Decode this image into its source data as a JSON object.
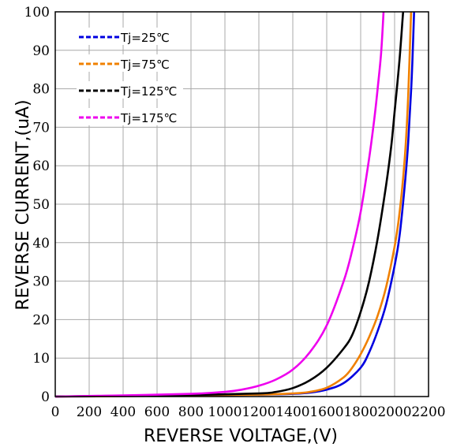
{
  "chart_data": {
    "type": "line",
    "xlabel": "REVERSE VOLTAGE,(V)",
    "ylabel": "REVERSE CURRENT,(uA)",
    "xlim": [
      0,
      2200
    ],
    "ylim": [
      0,
      100
    ],
    "xticks": [
      "0",
      "200",
      "400",
      "600",
      "800",
      "1000",
      "1200",
      "1400",
      "1600",
      "1800",
      "2000",
      "2200"
    ],
    "yticks": [
      "0",
      "10",
      "20",
      "30",
      "40",
      "50",
      "60",
      "70",
      "80",
      "90",
      "100"
    ],
    "grid": true,
    "legend_position": "top-left",
    "series": [
      {
        "name": "Tj=25℃",
        "color": "#0000e0",
        "x": [
          0,
          400,
          800,
          1200,
          1400,
          1500,
          1600,
          1700,
          1800,
          1850,
          1900,
          1950,
          2000,
          2030,
          2060,
          2080,
          2100,
          2115
        ],
        "y": [
          0,
          0.1,
          0.3,
          0.5,
          0.7,
          1.0,
          1.8,
          3.5,
          7.5,
          11.5,
          17,
          24,
          34,
          42,
          55,
          66,
          82,
          100
        ]
      },
      {
        "name": "Tj=75℃",
        "color": "#f08000",
        "x": [
          0,
          400,
          800,
          1200,
          1400,
          1500,
          1600,
          1700,
          1750,
          1800,
          1850,
          1900,
          1950,
          2000,
          2030,
          2060,
          2080,
          2097
        ],
        "y": [
          0,
          0.1,
          0.3,
          0.5,
          0.8,
          1.2,
          2.3,
          5,
          7.5,
          11,
          15.5,
          21,
          28.5,
          39,
          48,
          62,
          78,
          100
        ]
      },
      {
        "name": "Tj=125℃",
        "color": "#000000",
        "x": [
          0,
          400,
          800,
          1200,
          1300,
          1400,
          1500,
          1600,
          1700,
          1750,
          1800,
          1850,
          1900,
          1950,
          1980,
          2000,
          2030,
          2050
        ],
        "y": [
          0,
          0.2,
          0.4,
          0.8,
          1.2,
          2.2,
          4.2,
          7.5,
          12.5,
          16,
          22,
          30,
          41,
          55,
          65,
          74,
          88,
          100
        ]
      },
      {
        "name": "Tj=175℃",
        "color": "#ee00ee",
        "x": [
          0,
          400,
          800,
          1000,
          1100,
          1200,
          1300,
          1400,
          1500,
          1600,
          1700,
          1750,
          1800,
          1850,
          1880,
          1900,
          1920,
          1935
        ],
        "y": [
          0,
          0.3,
          0.7,
          1.2,
          1.8,
          2.8,
          4.4,
          7,
          11.5,
          18.5,
          30,
          38,
          48,
          62,
          72,
          80,
          89,
          100
        ]
      }
    ]
  }
}
